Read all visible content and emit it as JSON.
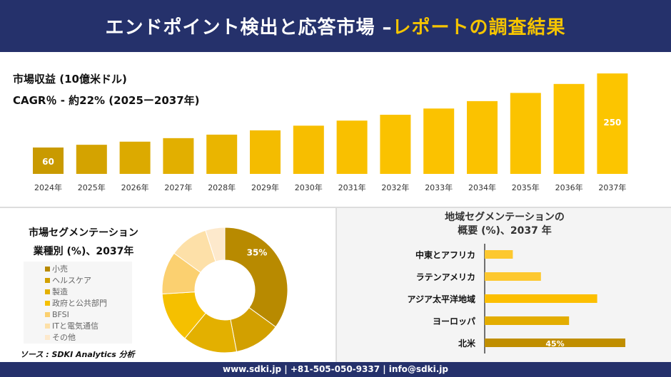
{
  "header": {
    "title_main": "エンドポイント検出と応答市場 –",
    "title_highlight": "レポートの調査結果"
  },
  "colors": {
    "navy": "#25316b",
    "accent": "#f5c400"
  },
  "chart_data": [
    {
      "type": "bar",
      "title": "市場収益 (10億米ドル)",
      "subtitle": "CAGR％ - 約22% (2025ー2037年)",
      "categories": [
        "2024年",
        "2025年",
        "2026年",
        "2027年",
        "2028年",
        "2029年",
        "2030年",
        "2031年",
        "2032年",
        "2033年",
        "2034年",
        "2035年",
        "2036年",
        "2037年"
      ],
      "values": [
        60,
        67,
        75,
        84,
        93,
        104,
        116,
        129,
        144,
        160,
        179,
        200,
        223,
        250
      ],
      "data_labels": {
        "0": "60",
        "13": "250"
      }
    },
    {
      "type": "pie",
      "title": "市場セグメンテーション 業種別 (%)、2037年",
      "donut": true,
      "labels": [
        "小売",
        "ヘルスケア",
        "製造",
        "政府と公共部門",
        "BFSI",
        "ITと電気通信",
        "その他"
      ],
      "values": [
        35,
        12,
        14,
        13,
        11,
        10,
        5
      ],
      "colors": [
        "#b88a00",
        "#d2a000",
        "#e3b000",
        "#f5c000",
        "#fbd070",
        "#fde0a8",
        "#fde9cc"
      ],
      "data_label": "35%"
    },
    {
      "type": "bar",
      "orientation": "horizontal",
      "title_line1": "地域セグメンテーションの",
      "title_line2": "概要 (%)、2037 年",
      "categories": [
        "中東とアフリカ",
        "ラテンアメリカ",
        "アジア太平洋地域",
        "ヨーロッパ",
        "北米"
      ],
      "values": [
        9,
        18,
        36,
        27,
        45
      ],
      "colors": [
        "#fdc82f",
        "#fdc82f",
        "#fcbf00",
        "#e3ad00",
        "#c08e00"
      ],
      "data_label": "45%"
    }
  ],
  "segmentation": {
    "title_line1": "市場セグメンテーション",
    "title_line2": "業種別 (%)、2037年"
  },
  "source": "ソース : SDKI Analytics 分析",
  "footer": "www.sdki.jp | +81-505-050-9337 | info@sdki.jp"
}
